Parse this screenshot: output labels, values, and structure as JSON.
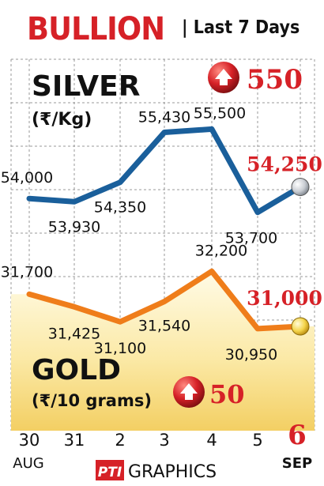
{
  "header": {
    "title": "BULLION",
    "subtitle": "| Last 7 Days"
  },
  "footer": {
    "credit_logo": "PTI",
    "credit_text": "GRAPHICS"
  },
  "colors": {
    "accent_red": "#d62127",
    "silver_line": "#1a5f9b",
    "gold_line": "#ef7d1a",
    "gold_fill_top": "#fdf3c4",
    "gold_fill_bottom": "#f7d87a",
    "grid": "#9a9a9a",
    "text": "#111111"
  },
  "chart_data": {
    "type": "line",
    "categories": [
      "30",
      "31",
      "2",
      "3",
      "4",
      "5",
      "6"
    ],
    "month_labels": {
      "start": "AUG",
      "end": "SEP"
    },
    "grid": true,
    "series": [
      {
        "name": "SILVER",
        "unit": "(₹/Kg)",
        "values": [
          54000,
          53930,
          54350,
          55430,
          55500,
          53700,
          54250
        ],
        "value_labels": [
          "54,000",
          "53,930",
          "54,350",
          "55,430",
          "55,500",
          "53,700",
          "54,250"
        ],
        "change_value": "550",
        "change_icon": "up-arrow-icon",
        "ylim": [
          53200,
          55900
        ]
      },
      {
        "name": "GOLD",
        "unit": "(₹/10 grams)",
        "values": [
          31700,
          31425,
          31100,
          31540,
          32200,
          30950,
          31000
        ],
        "value_labels": [
          "31,700",
          "31,425",
          "31,100",
          "31,540",
          "32,200",
          "30,950",
          "31,000"
        ],
        "change_value": "50",
        "change_icon": "up-arrow-icon",
        "ylim": [
          30450,
          32600
        ]
      }
    ]
  }
}
